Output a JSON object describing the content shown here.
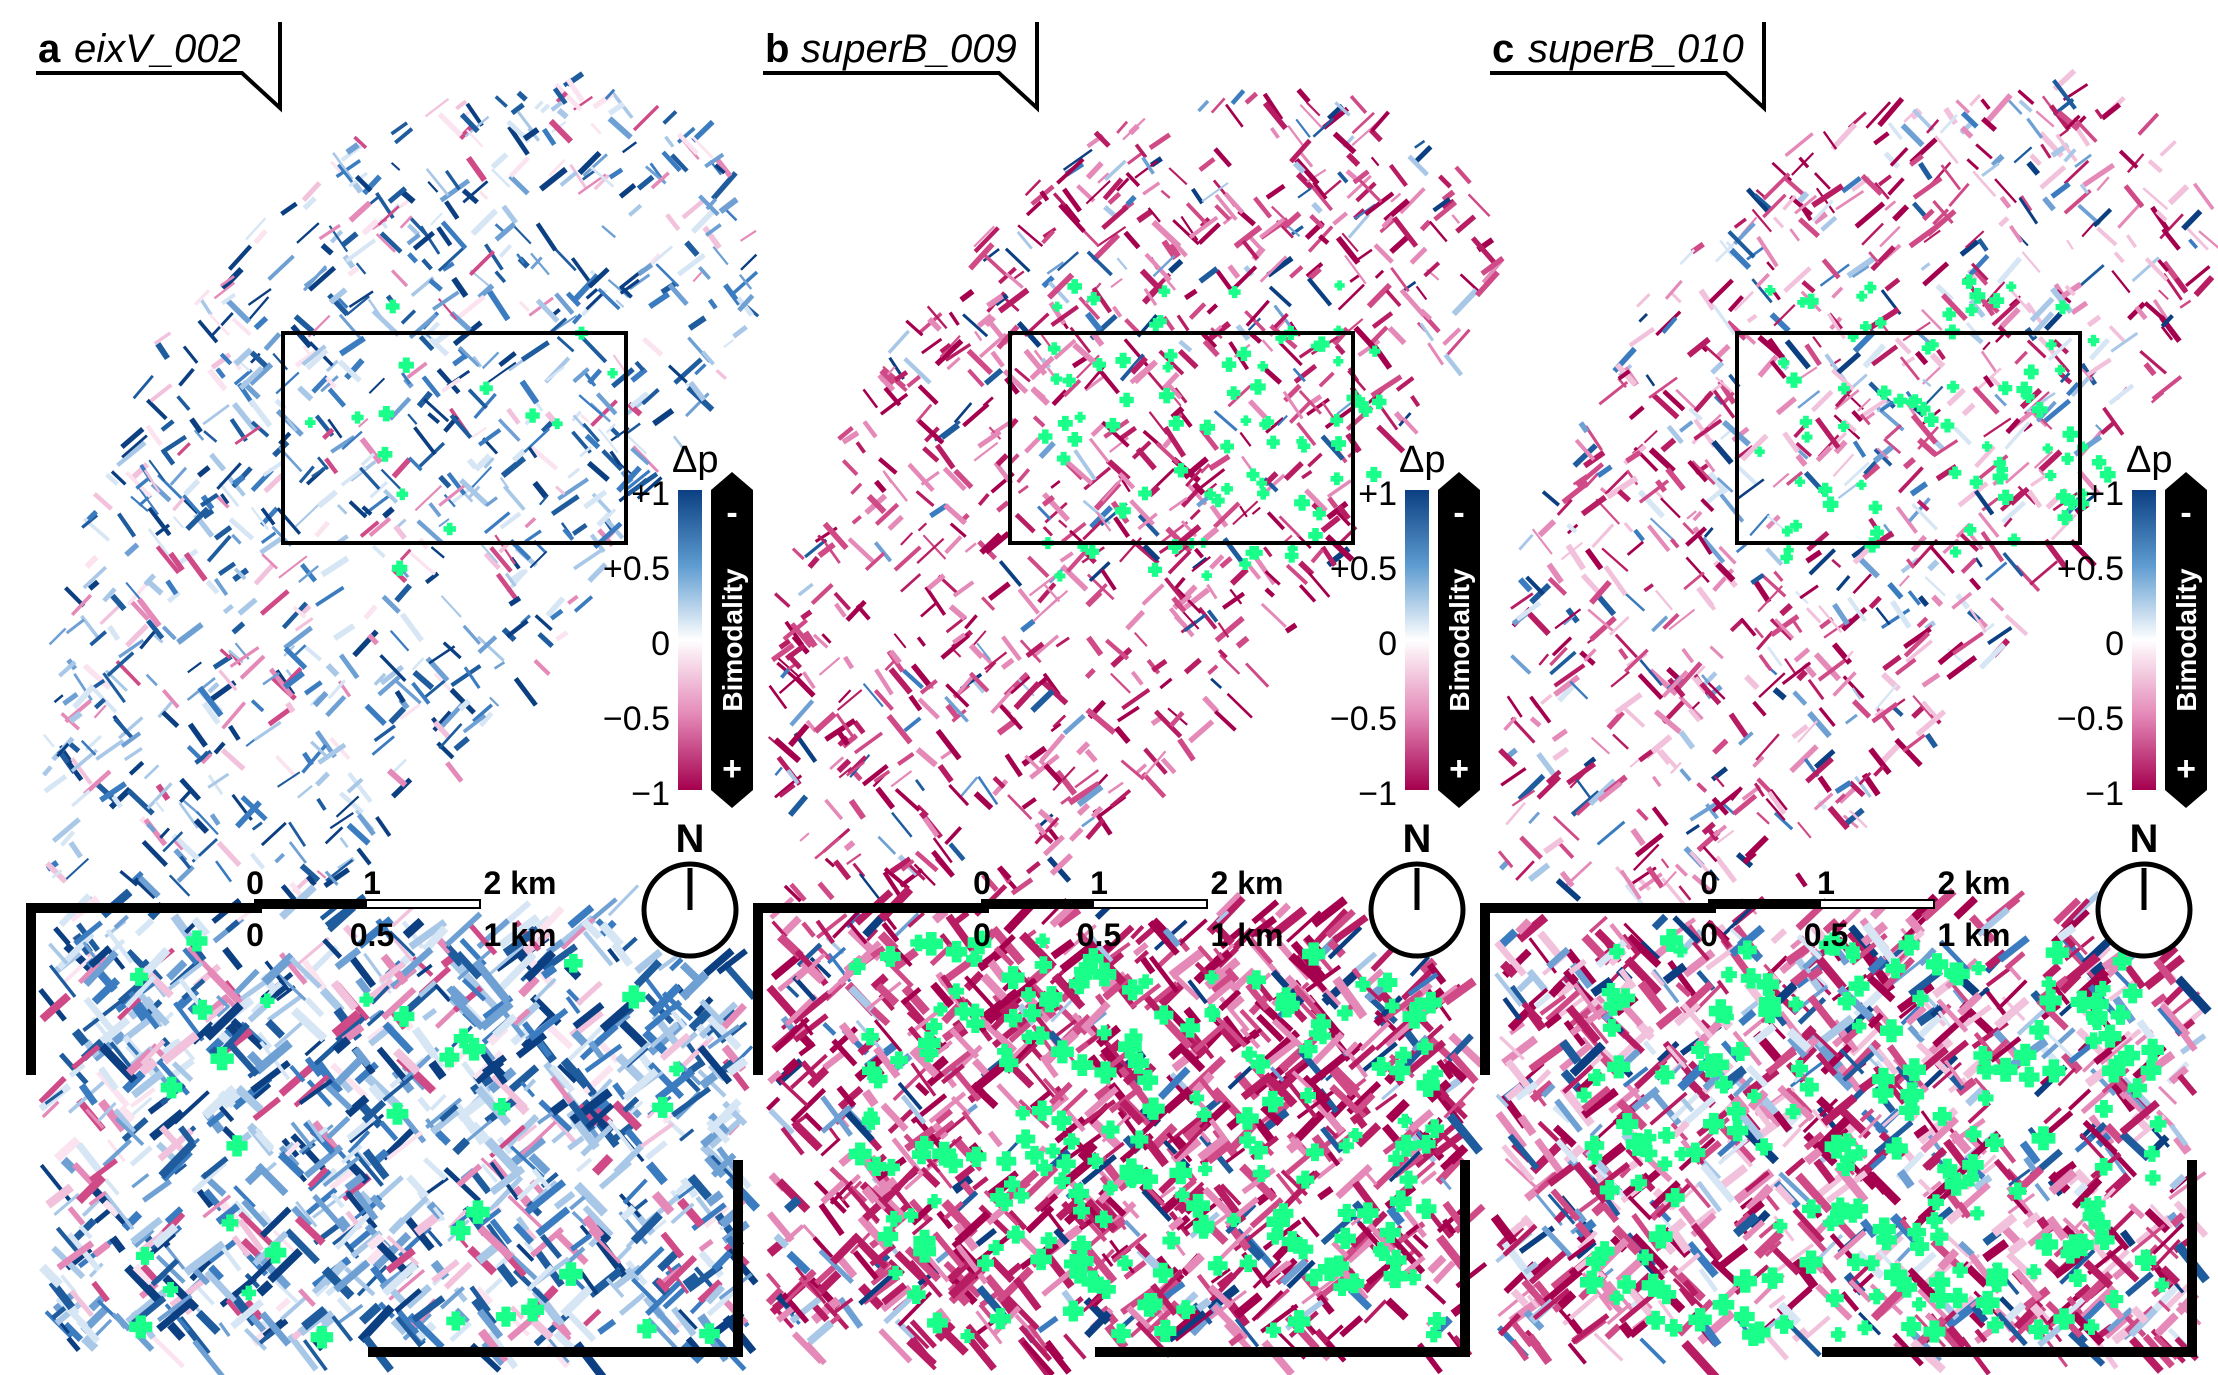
{
  "panels": [
    {
      "id": "a",
      "letter": "a",
      "name": "eixV_002",
      "variant": "blue",
      "greenLevel": 0.15
    },
    {
      "id": "b",
      "letter": "b",
      "name": "superB_009",
      "variant": "magenta",
      "greenLevel": 0.9
    },
    {
      "id": "c",
      "letter": "c",
      "name": "superB_010",
      "variant": "magentaMix",
      "greenLevel": 0.85
    }
  ],
  "legend": {
    "title": "Δp",
    "ticks": [
      "+1",
      "+0.5",
      "0",
      "−0.5",
      "−1"
    ],
    "tick_values": [
      1,
      0.5,
      0,
      -0.5,
      -1
    ],
    "bimodality_label": "Bimodality",
    "minus_sign": "-",
    "plus_sign": "+"
  },
  "scale_bar": {
    "top_labels": [
      "0",
      "1",
      "2 km"
    ],
    "bottom_labels": [
      "0",
      "0.5",
      "1 km"
    ]
  },
  "north_label": "N",
  "colors": {
    "positive": "#0b3f82",
    "mid": "#ffffff",
    "negative": "#a5004e",
    "superblock": "#1aff8a",
    "frame": "#000000"
  }
}
